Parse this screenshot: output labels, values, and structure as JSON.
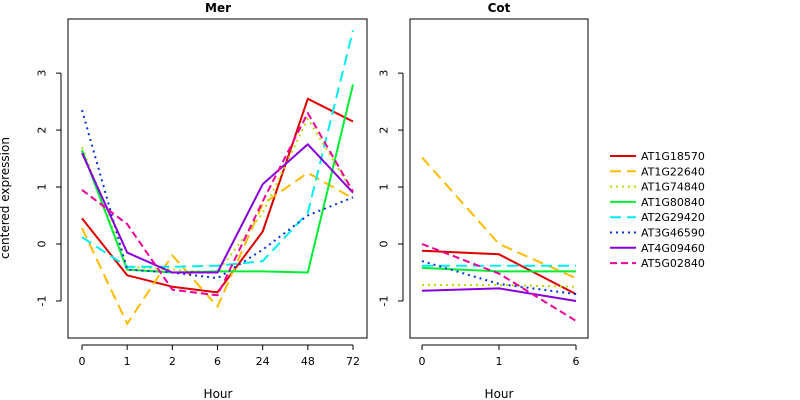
{
  "chart_data": [
    {
      "type": "line",
      "title": "Mer",
      "xlabel": "Hour",
      "ylabel": "centered expression",
      "categories": [
        "0",
        "1",
        "2",
        "6",
        "24",
        "48",
        "72"
      ],
      "ylim": [
        -1.65,
        3.95
      ],
      "yticks": [
        -1,
        0,
        1,
        2,
        3
      ],
      "series": [
        {
          "name": "AT1G18570",
          "color": "#dd0000",
          "dash": "solid",
          "values": [
            0.45,
            -0.55,
            -0.75,
            -0.85,
            0.22,
            2.55,
            2.15
          ]
        },
        {
          "name": "AT1G22640",
          "color": "#ffbb00",
          "dash": "longdash",
          "values": [
            0.28,
            -1.4,
            -0.2,
            -1.1,
            0.7,
            1.25,
            0.8
          ]
        },
        {
          "name": "AT1G74840",
          "color": "#bbdd00",
          "dash": "dotted",
          "values": [
            1.7,
            -0.4,
            -0.45,
            -0.5,
            0.55,
            2.2,
            0.9
          ]
        },
        {
          "name": "AT1G80840",
          "color": "#00ee33",
          "dash": "solid",
          "values": [
            1.65,
            -0.45,
            -0.5,
            -0.48,
            -0.48,
            -0.5,
            2.8
          ]
        },
        {
          "name": "AT2G29420",
          "color": "#00eeee",
          "dash": "longdash",
          "values": [
            0.12,
            -0.4,
            -0.4,
            -0.38,
            -0.3,
            0.55,
            3.75
          ]
        },
        {
          "name": "AT3G46590",
          "color": "#0033dd",
          "dash": "dotted",
          "values": [
            2.35,
            -0.45,
            -0.5,
            -0.6,
            -0.1,
            0.5,
            0.82
          ]
        },
        {
          "name": "AT4G09460",
          "color": "#8800dd",
          "dash": "solid",
          "values": [
            1.6,
            -0.15,
            -0.5,
            -0.5,
            1.05,
            1.75,
            0.9
          ]
        },
        {
          "name": "AT5G02840",
          "color": "#ee0099",
          "dash": "dashed",
          "values": [
            0.95,
            0.35,
            -0.8,
            -0.9,
            0.75,
            2.3,
            0.92
          ]
        }
      ]
    },
    {
      "type": "line",
      "title": "Cot",
      "xlabel": "Hour",
      "categories": [
        "0",
        "1",
        "6"
      ],
      "ylim": [
        -1.65,
        3.95
      ],
      "yticks": [
        -1,
        0,
        1,
        2,
        3
      ],
      "series": [
        {
          "name": "AT1G18570",
          "color": "#dd0000",
          "dash": "solid",
          "values": [
            -0.12,
            -0.18,
            -0.88
          ]
        },
        {
          "name": "AT1G22640",
          "color": "#ffbb00",
          "dash": "longdash",
          "values": [
            1.52,
            0.0,
            -0.6
          ]
        },
        {
          "name": "AT1G74840",
          "color": "#bbdd00",
          "dash": "dotted",
          "values": [
            -0.72,
            -0.72,
            -0.75
          ]
        },
        {
          "name": "AT1G80840",
          "color": "#00ee33",
          "dash": "solid",
          "values": [
            -0.42,
            -0.48,
            -0.48
          ]
        },
        {
          "name": "AT2G29420",
          "color": "#00eeee",
          "dash": "longdash",
          "values": [
            -0.38,
            -0.38,
            -0.38
          ]
        },
        {
          "name": "AT3G46590",
          "color": "#0033dd",
          "dash": "dotted",
          "values": [
            -0.3,
            -0.7,
            -0.88
          ]
        },
        {
          "name": "AT4G09460",
          "color": "#8800dd",
          "dash": "solid",
          "values": [
            -0.82,
            -0.78,
            -1.0
          ]
        },
        {
          "name": "AT5G02840",
          "color": "#ee0099",
          "dash": "dashed",
          "values": [
            0.0,
            -0.52,
            -1.35
          ]
        }
      ]
    }
  ],
  "legend": {
    "placement": "right",
    "entries": [
      "AT1G18570",
      "AT1G22640",
      "AT1G74840",
      "AT1G80840",
      "AT2G29420",
      "AT3G46590",
      "AT4G09460",
      "AT5G02840"
    ]
  }
}
